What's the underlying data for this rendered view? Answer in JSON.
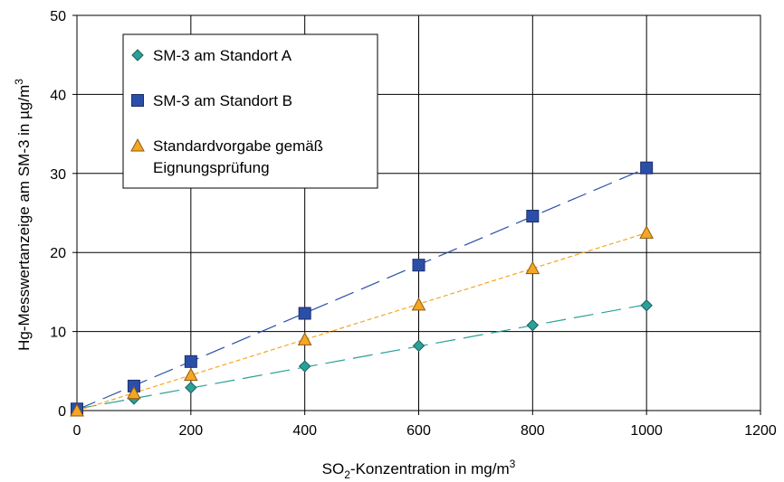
{
  "chart_data": {
    "type": "scatter",
    "xlabel": {
      "main": "SO",
      "sub": "2",
      "rest": "-Konzentration in mg/m",
      "sup": "3"
    },
    "ylabel": {
      "main": "Hg-Messwertanzeige am SM-3 in µg/m",
      "sup": "3"
    },
    "xlim": [
      0,
      1200
    ],
    "ylim": [
      0,
      50
    ],
    "xticks": [
      0,
      200,
      400,
      600,
      800,
      1000,
      1200
    ],
    "yticks": [
      0,
      10,
      20,
      30,
      40,
      50
    ],
    "grid": true,
    "legend_position": "top-left",
    "series": [
      {
        "name": "SM-3 am Standort A",
        "marker": "diamond",
        "color": "#2aa198",
        "stroke": "#1d5f5a",
        "line_style": "long-dash",
        "x": [
          0,
          100,
          200,
          400,
          600,
          800,
          1000
        ],
        "y": [
          0.1,
          1.5,
          2.9,
          5.6,
          8.2,
          10.8,
          13.3
        ]
      },
      {
        "name": "SM-3 am Standort B",
        "marker": "square",
        "color": "#2b4fa8",
        "stroke": "#1a2f6b",
        "line_style": "long-dash",
        "x": [
          0,
          100,
          200,
          400,
          600,
          800,
          1000
        ],
        "y": [
          0.2,
          3.1,
          6.2,
          12.3,
          18.4,
          24.6,
          30.7
        ]
      },
      {
        "name": "Standardvorgabe gemäß Eignungsprüfung",
        "name_lines": [
          "Standardvorgabe gemäß",
          "Eignungsprüfung"
        ],
        "marker": "triangle",
        "color": "#f5a623",
        "stroke": "#8a5a10",
        "line_style": "short-dash",
        "x": [
          0,
          100,
          200,
          400,
          600,
          800,
          1000
        ],
        "y": [
          0.0,
          2.2,
          4.5,
          9.0,
          13.4,
          18.0,
          22.5
        ]
      }
    ]
  }
}
